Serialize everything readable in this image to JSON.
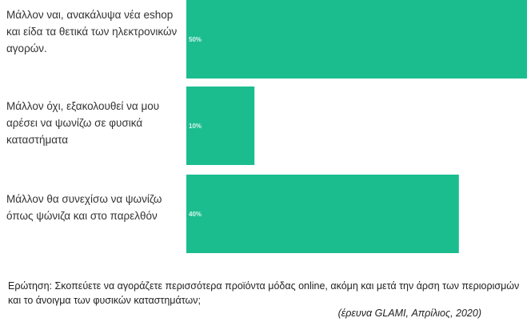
{
  "chart_data": {
    "type": "bar",
    "orientation": "horizontal",
    "categories": [
      "Μάλλον ναι, ανακάλυψα νέα eshop και είδα τα θετικά των ηλεκτρονικών αγορών.",
      "Μάλλον όχι, εξακολουθεί να μου αρέσει να ψωνίζω σε φυσικά καταστήματα",
      "Μάλλον θα συνεχίσω να ψωνίζω όπως ψώνιζα και στο παρελθόν"
    ],
    "values": [
      50,
      10,
      40
    ],
    "value_labels": [
      "50%",
      "10%",
      "40%"
    ],
    "xlim": [
      0,
      50
    ],
    "bar_color": "#1bbd8f",
    "label_color": "#d9f5ec",
    "grid": false,
    "legend": "none"
  },
  "question": "Ερώτηση: Σκοπεύετε να αγοράζετε περισσότερα προϊόντα μόδας online, ακόμη και μετά την άρση των περιορισμών και το άνοιγμα των φυσικών καταστημάτων;",
  "source": "(έρευνα GLAMI, Απρίλιος, 2020)"
}
